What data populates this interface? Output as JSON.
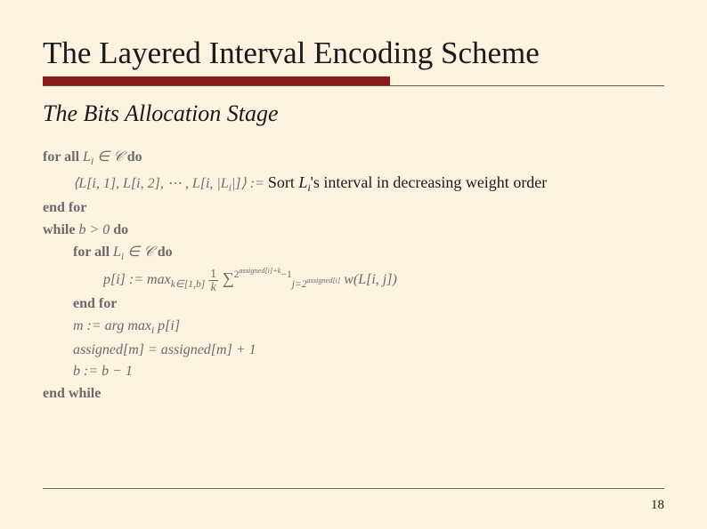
{
  "title": "The Layered Interval Encoding Scheme",
  "subtitle": "The Bits Allocation Stage",
  "colors": {
    "background": "#fdf2e0",
    "title_text": "#1a1a1a",
    "accent_bar": "#8b1a1a",
    "algo_text": "#6b6b6b",
    "annotation_text": "#1a1a1a",
    "rule": "#666666"
  },
  "fontsizes": {
    "title": 35,
    "subtitle": 26,
    "algo": 16,
    "annotation": 18,
    "page_num": 15
  },
  "layout": {
    "slide_width": 794,
    "slide_height": 595,
    "red_bar_width": 390,
    "red_bar_height": 10
  },
  "algorithm": {
    "line1_a": "for all ",
    "line1_b": "L",
    "line1_c": " ∈ 𝒞 ",
    "line1_d": "do",
    "line2_a": "⟨L[i, 1], L[i, 2], ⋯ , L[i, |L",
    "line2_b": "|]⟩ := ",
    "annotation_a": "Sort  ",
    "annotation_b": "L",
    "annotation_c": "'s interval in decreasing weight order",
    "line3": "end for",
    "line4_a": "while ",
    "line4_b": "b > 0 ",
    "line4_c": "do",
    "line5_a": "for all ",
    "line5_b": "L",
    "line5_c": " ∈ 𝒞 ",
    "line5_d": "do",
    "line6_a": "p[i] := max",
    "line6_b": "k∈[1,b]",
    "line6_c": " ",
    "line6_frac_num": "1",
    "line6_frac_den": "k",
    "line6_d": " ∑",
    "line6_sum_lo": "j=2",
    "line6_sum_lo2": "assigned[i]",
    "line6_sum_hi": "2",
    "line6_sum_hi2": "assigned[i]+k",
    "line6_sum_hi3": "−1",
    "line6_e": " w(L[i, j])",
    "line7": "end for",
    "line8_a": "m := arg max",
    "line8_b": "i",
    "line8_c": " p[i]",
    "line9": "assigned[m] = assigned[m] + 1",
    "line10": "b := b − 1",
    "line11": "end while",
    "sub_i": "i"
  },
  "page_number": "18"
}
